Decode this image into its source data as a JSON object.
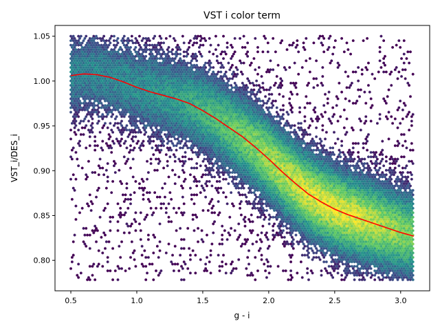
{
  "chart_data": {
    "type": "heatmap",
    "subtype": "hexbin",
    "title": "VST i color term",
    "xlabel": "g - i",
    "ylabel": "VST_i/DES_i",
    "xlim": [
      0.38,
      3.22
    ],
    "ylim": [
      0.766,
      1.062
    ],
    "x_ticks": [
      0.5,
      1.0,
      1.5,
      2.0,
      2.5,
      3.0
    ],
    "x_tick_labels": [
      "0.5",
      "1.0",
      "1.5",
      "2.0",
      "2.5",
      "3.0"
    ],
    "y_ticks": [
      0.8,
      0.85,
      0.9,
      0.95,
      1.0,
      1.05
    ],
    "y_tick_labels": [
      "0.80",
      "0.85",
      "0.90",
      "0.95",
      "1.00",
      "1.05"
    ],
    "grid": false,
    "legend": "none",
    "colormap": "viridis",
    "colormap_stops": [
      "#440154",
      "#3b528b",
      "#21918c",
      "#5ec962",
      "#fde725"
    ],
    "density": {
      "x_range": [
        0.5,
        3.1
      ],
      "y_range": [
        0.778,
        1.05
      ],
      "peak_center": [
        2.45,
        0.875
      ],
      "band_width": 0.03
    },
    "fit_line": {
      "color": "#ff0000",
      "x": [
        0.5,
        0.6,
        0.7,
        0.8,
        0.9,
        1.0,
        1.1,
        1.2,
        1.3,
        1.4,
        1.5,
        1.6,
        1.7,
        1.8,
        1.9,
        2.0,
        2.1,
        2.2,
        2.3,
        2.4,
        2.5,
        2.6,
        2.7,
        2.8,
        2.9,
        3.0,
        3.1
      ],
      "y": [
        1.006,
        1.008,
        1.007,
        1.004,
        0.999,
        0.993,
        0.988,
        0.984,
        0.98,
        0.975,
        0.967,
        0.958,
        0.948,
        0.938,
        0.926,
        0.913,
        0.899,
        0.886,
        0.874,
        0.865,
        0.857,
        0.851,
        0.846,
        0.841,
        0.836,
        0.831,
        0.827
      ]
    }
  }
}
